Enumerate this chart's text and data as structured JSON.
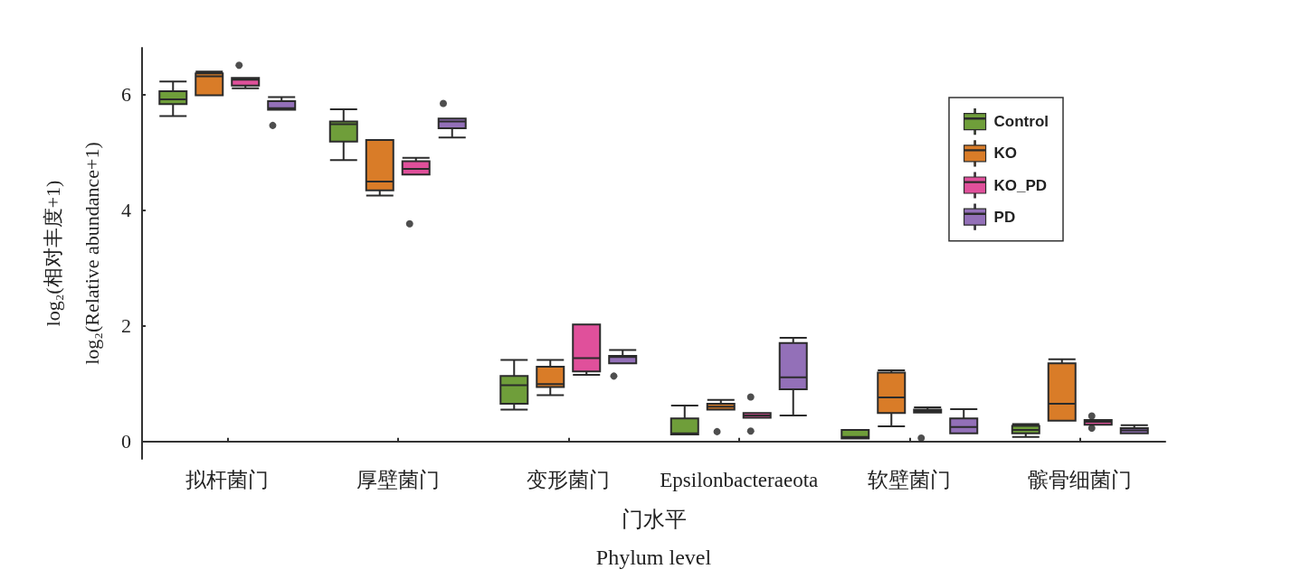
{
  "chart_data": {
    "type": "box",
    "categories": [
      "拟杆菌门",
      "厚壁菌门",
      "变形菌门",
      "Epsilonbacteraeota",
      "软壁菌门",
      "髌骨细菌门"
    ],
    "xlabel": "门水平\nPhylum level",
    "ylabel": "log₂(相对丰度+1)\nlog₂(Relative abundance+1)",
    "ylim": [
      -0.3,
      6.8
    ],
    "yticks": [
      0,
      2,
      4,
      6
    ],
    "legend": "top right",
    "series": [
      {
        "name": "Control",
        "color": "#6f9e3a",
        "boxes": [
          {
            "low": 5.62,
            "q1": 5.83,
            "median": 5.91,
            "q3": 6.05,
            "high": 6.22
          },
          {
            "low": 4.86,
            "q1": 5.18,
            "median": 5.48,
            "q3": 5.53,
            "high": 5.74
          },
          {
            "low": 0.55,
            "q1": 0.65,
            "median": 0.97,
            "q3": 1.13,
            "high": 1.41
          },
          {
            "low": 0.12,
            "q1": 0.12,
            "median": 0.14,
            "q3": 0.4,
            "high": 0.62
          },
          {
            "low": 0.05,
            "q1": 0.05,
            "median": 0.08,
            "q3": 0.2,
            "high": 0.2
          },
          {
            "low": 0.08,
            "q1": 0.14,
            "median": 0.2,
            "q3": 0.27,
            "high": 0.3
          }
        ]
      },
      {
        "name": "KO",
        "color": "#d97c28",
        "boxes": [
          {
            "low": 5.98,
            "q1": 5.98,
            "median": 6.31,
            "q3": 6.36,
            "high": 6.39
          },
          {
            "low": 4.25,
            "q1": 4.34,
            "median": 4.49,
            "q3": 5.21,
            "high": 5.21
          },
          {
            "low": 0.8,
            "q1": 0.94,
            "median": 0.99,
            "q3": 1.29,
            "high": 1.41
          },
          {
            "low": 0.55,
            "q1": 0.55,
            "median": 0.6,
            "q3": 0.65,
            "high": 0.72,
            "outliers": [
              0.17
            ]
          },
          {
            "low": 0.26,
            "q1": 0.49,
            "median": 0.76,
            "q3": 1.19,
            "high": 1.23
          },
          {
            "low": 0.36,
            "q1": 0.36,
            "median": 0.65,
            "q3": 1.35,
            "high": 1.42
          }
        ]
      },
      {
        "name": "KO_PD",
        "color": "#e0509b",
        "boxes": [
          {
            "low": 6.1,
            "q1": 6.15,
            "median": 6.25,
            "q3": 6.28,
            "high": 6.28,
            "outliers": [
              6.5
            ]
          },
          {
            "low": 4.61,
            "q1": 4.61,
            "median": 4.71,
            "q3": 4.84,
            "high": 4.9,
            "outliers": [
              3.76
            ]
          },
          {
            "low": 1.15,
            "q1": 1.21,
            "median": 1.44,
            "q3": 2.02,
            "high": 2.02
          },
          {
            "low": 0.41,
            "q1": 0.41,
            "median": 0.45,
            "q3": 0.49,
            "high": 0.49,
            "outliers": [
              0.77,
              0.18
            ]
          },
          {
            "low": 0.5,
            "q1": 0.5,
            "median": 0.52,
            "q3": 0.55,
            "high": 0.59,
            "outliers": [
              0.06
            ]
          },
          {
            "low": 0.29,
            "q1": 0.29,
            "median": 0.34,
            "q3": 0.37,
            "high": 0.37,
            "outliers": [
              0.44,
              0.23
            ]
          }
        ]
      },
      {
        "name": "PD",
        "color": "#9370b8",
        "boxes": [
          {
            "low": 5.73,
            "q1": 5.73,
            "median": 5.76,
            "q3": 5.88,
            "high": 5.95,
            "outliers": [
              5.46
            ]
          },
          {
            "low": 5.25,
            "q1": 5.41,
            "median": 5.53,
            "q3": 5.58,
            "high": 5.58,
            "outliers": [
              5.84
            ]
          },
          {
            "low": 1.35,
            "q1": 1.35,
            "median": 1.46,
            "q3": 1.48,
            "high": 1.58,
            "outliers": [
              1.13
            ]
          },
          {
            "low": 0.45,
            "q1": 0.9,
            "median": 1.11,
            "q3": 1.7,
            "high": 1.79
          },
          {
            "low": 0.14,
            "q1": 0.14,
            "median": 0.25,
            "q3": 0.4,
            "high": 0.56
          },
          {
            "low": 0.14,
            "q1": 0.14,
            "median": 0.19,
            "q3": 0.23,
            "high": 0.28
          }
        ]
      }
    ]
  }
}
